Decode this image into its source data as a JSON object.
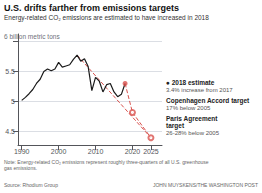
{
  "chart_data": {
    "type": "line",
    "title": "U.S. drifts farther from emissions targets",
    "subtitle": "Energy-related CO₂ emissions are estimated to have increased in 2018",
    "note": "Note: Energy-related CO₂ emissions represent roughly three-quarters of all U.S. greenhouse\ngas emissions.",
    "source": "Source: Rhodium Group",
    "credit": "JOHN MUYSKENS/THE WASHINGTON POST",
    "xlim": [
      1989,
      2028
    ],
    "xticks": [
      1990,
      2000,
      2010,
      2020,
      2025
    ],
    "ylim": [
      4.28,
      6.12
    ],
    "yticks": [
      4.5,
      5.0,
      5.5,
      {
        "value": 6.0,
        "label": "6 billion metric tons"
      }
    ],
    "grid": true,
    "series": [
      {
        "type": "line",
        "line_style": "solid",
        "color": "#1a1a1a",
        "x": [
          1990,
          1991,
          1992,
          1993,
          1994,
          1995,
          1996,
          1997,
          1998,
          1999,
          2000,
          2001,
          2002,
          2003,
          2004,
          2005,
          2006,
          2007,
          2008,
          2009,
          2010,
          2011,
          2012,
          2013,
          2014,
          2015,
          2016,
          2017,
          2018
        ],
        "values": [
          5.02,
          5.07,
          5.13,
          5.2,
          5.3,
          5.37,
          5.5,
          5.54,
          5.51,
          5.54,
          5.65,
          5.57,
          5.59,
          5.61,
          5.7,
          5.77,
          5.67,
          5.71,
          5.58,
          5.18,
          5.4,
          5.34,
          5.16,
          5.28,
          5.3,
          5.16,
          5.08,
          5.12,
          5.3
        ]
      },
      {
        "type": "line",
        "line_style": "dashed",
        "color": "#d9534f",
        "x": [
          2005,
          2025
        ],
        "values": [
          5.77,
          4.4
        ]
      },
      {
        "type": "line",
        "line_style": "dashed",
        "color": "#d9534f",
        "x": [
          2018,
          2020,
          2025
        ],
        "values": [
          5.3,
          4.82,
          4.4
        ]
      },
      {
        "type": "scatter",
        "marker": "filled_circle",
        "color": "#d9534f",
        "x": [
          2018
        ],
        "values": [
          5.3
        ]
      },
      {
        "type": "scatter",
        "marker": "open_circle",
        "color": "#d9534f",
        "x": [
          2020
        ],
        "values": [
          4.82
        ]
      },
      {
        "type": "scatter",
        "marker": "open_circle",
        "color": "#d9534f",
        "x": [
          2025
        ],
        "values": [
          4.4
        ]
      }
    ],
    "annotations": [
      {
        "title": "● 2018 estimate",
        "text": "3.4% increase from 2017"
      },
      {
        "title": "Copenhagen Accord target",
        "text": "17% below 2005"
      },
      {
        "title": "Paris Agreement\ntarget",
        "text": "26-28% below 2005"
      }
    ]
  }
}
